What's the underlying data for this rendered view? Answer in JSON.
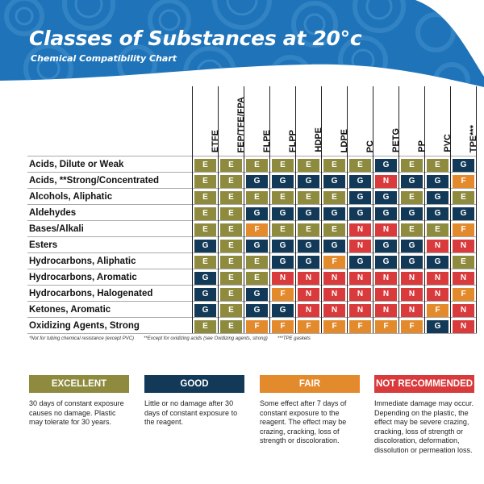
{
  "header": {
    "title": "Classes of Substances at 20°c",
    "subtitle": "Chemical Compatibility Chart"
  },
  "colors": {
    "banner": "#1f73b9",
    "E": "#8e8b3f",
    "G": "#123a58",
    "F": "#e38a2c",
    "N": "#d93a3c"
  },
  "columns": [
    "ETFE",
    "FEP/TFE/FPA",
    "FLPE",
    "FLPP",
    "HDPE",
    "LDPE",
    "PC",
    "PETG",
    "PP",
    "PVC",
    "TPE***"
  ],
  "rows": [
    {
      "label": "Acids, Dilute or Weak",
      "values": [
        "E",
        "E",
        "E",
        "E",
        "E",
        "E",
        "E",
        "G",
        "E",
        "E",
        "G"
      ]
    },
    {
      "label": "Acids, **Strong/Concentrated",
      "values": [
        "E",
        "E",
        "G",
        "G",
        "G",
        "G",
        "G",
        "N",
        "G",
        "G",
        "F"
      ]
    },
    {
      "label": "Alcohols, Aliphatic",
      "values": [
        "E",
        "E",
        "E",
        "E",
        "E",
        "E",
        "G",
        "G",
        "E",
        "G",
        "E"
      ]
    },
    {
      "label": "Aldehydes",
      "values": [
        "E",
        "E",
        "G",
        "G",
        "G",
        "G",
        "G",
        "G",
        "G",
        "G",
        "G"
      ]
    },
    {
      "label": "Bases/Alkali",
      "values": [
        "E",
        "E",
        "F",
        "E",
        "E",
        "E",
        "N",
        "N",
        "E",
        "E",
        "F"
      ]
    },
    {
      "label": "Esters",
      "values": [
        "G",
        "E",
        "G",
        "G",
        "G",
        "G",
        "N",
        "G",
        "G",
        "N",
        "N"
      ]
    },
    {
      "label": "Hydrocarbons, Aliphatic",
      "values": [
        "E",
        "E",
        "E",
        "G",
        "G",
        "F",
        "G",
        "G",
        "G",
        "G",
        "E"
      ]
    },
    {
      "label": "Hydrocarbons, Aromatic",
      "values": [
        "G",
        "E",
        "E",
        "N",
        "N",
        "N",
        "N",
        "N",
        "N",
        "N",
        "N"
      ]
    },
    {
      "label": "Hydrocarbons, Halogenated",
      "values": [
        "G",
        "E",
        "G",
        "F",
        "N",
        "N",
        "N",
        "N",
        "N",
        "N",
        "F"
      ]
    },
    {
      "label": "Ketones, Aromatic",
      "values": [
        "G",
        "E",
        "G",
        "G",
        "N",
        "N",
        "N",
        "N",
        "N",
        "F",
        "N"
      ]
    },
    {
      "label": "Oxidizing Agents, Strong",
      "values": [
        "E",
        "E",
        "F",
        "F",
        "F",
        "F",
        "F",
        "F",
        "F",
        "G",
        "N"
      ]
    }
  ],
  "footnotes": [
    "*Not for tubing chemical resistance (except PVC)",
    "**Except for oxidizing acids (see Oxidizing agents, strong)",
    "***TPE gaskets"
  ],
  "legend": [
    {
      "key": "E",
      "label": "EXCELLENT",
      "desc": "30 days of constant exposure causes no damage. Plastic may tolerate for 30 years."
    },
    {
      "key": "G",
      "label": "GOOD",
      "desc": "Little or no damage after 30 days of constant exposure to the reagent."
    },
    {
      "key": "F",
      "label": "FAIR",
      "desc": "Some effect after 7 days of constant exposure to the reagent. The effect may be crazing, cracking, loss of strength or discoloration."
    },
    {
      "key": "N",
      "label": "NOT RECOMMENDED",
      "desc": "Immediate damage may occur. Depending on the plastic, the effect may be severe crazing, cracking, loss of strength or discoloration, deformation, dissolution or permeation loss."
    }
  ]
}
